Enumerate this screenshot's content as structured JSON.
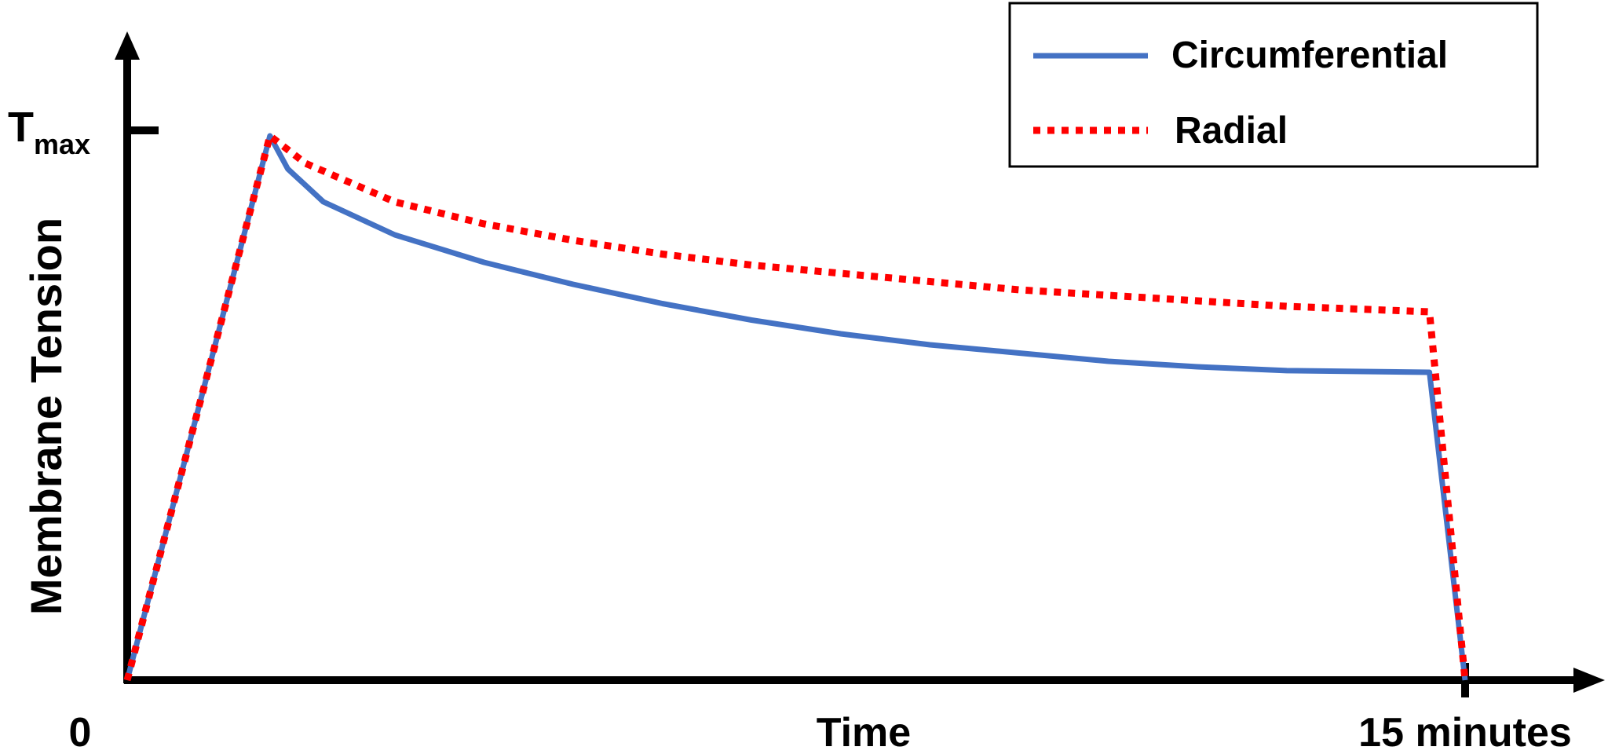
{
  "chart_data": {
    "type": "line",
    "title": "",
    "xlabel": "Time",
    "ylabel": "Membrane Tension",
    "x_ticks": [
      {
        "value": 0,
        "label": "0"
      },
      {
        "value": 15,
        "label": "15 minutes"
      }
    ],
    "y_ticks": [
      {
        "value": 1.0,
        "label_main": "T",
        "label_sub": "max"
      }
    ],
    "xlim": [
      0,
      16.5
    ],
    "ylim": [
      0,
      1.15
    ],
    "grid": false,
    "legend_position": "top-right",
    "series": [
      {
        "name": "Circumferential",
        "color": "#4472C4",
        "style": "solid",
        "x": [
          0,
          1.6,
          1.8,
          2.2,
          3,
          4,
          5,
          6,
          7,
          8,
          9,
          10,
          11,
          12,
          13,
          14.6,
          15
        ],
        "y": [
          0,
          0.99,
          0.93,
          0.87,
          0.81,
          0.76,
          0.72,
          0.685,
          0.655,
          0.63,
          0.61,
          0.595,
          0.58,
          0.57,
          0.563,
          0.56,
          0
        ]
      },
      {
        "name": "Radial",
        "color": "#FF0000",
        "style": "dotted",
        "x": [
          0,
          1.6,
          2,
          3,
          4,
          5,
          6,
          7,
          8,
          9,
          10,
          11,
          12,
          13,
          14.6,
          15
        ],
        "y": [
          0,
          0.99,
          0.94,
          0.87,
          0.83,
          0.8,
          0.775,
          0.755,
          0.74,
          0.725,
          0.71,
          0.7,
          0.69,
          0.68,
          0.67,
          0
        ]
      }
    ]
  }
}
